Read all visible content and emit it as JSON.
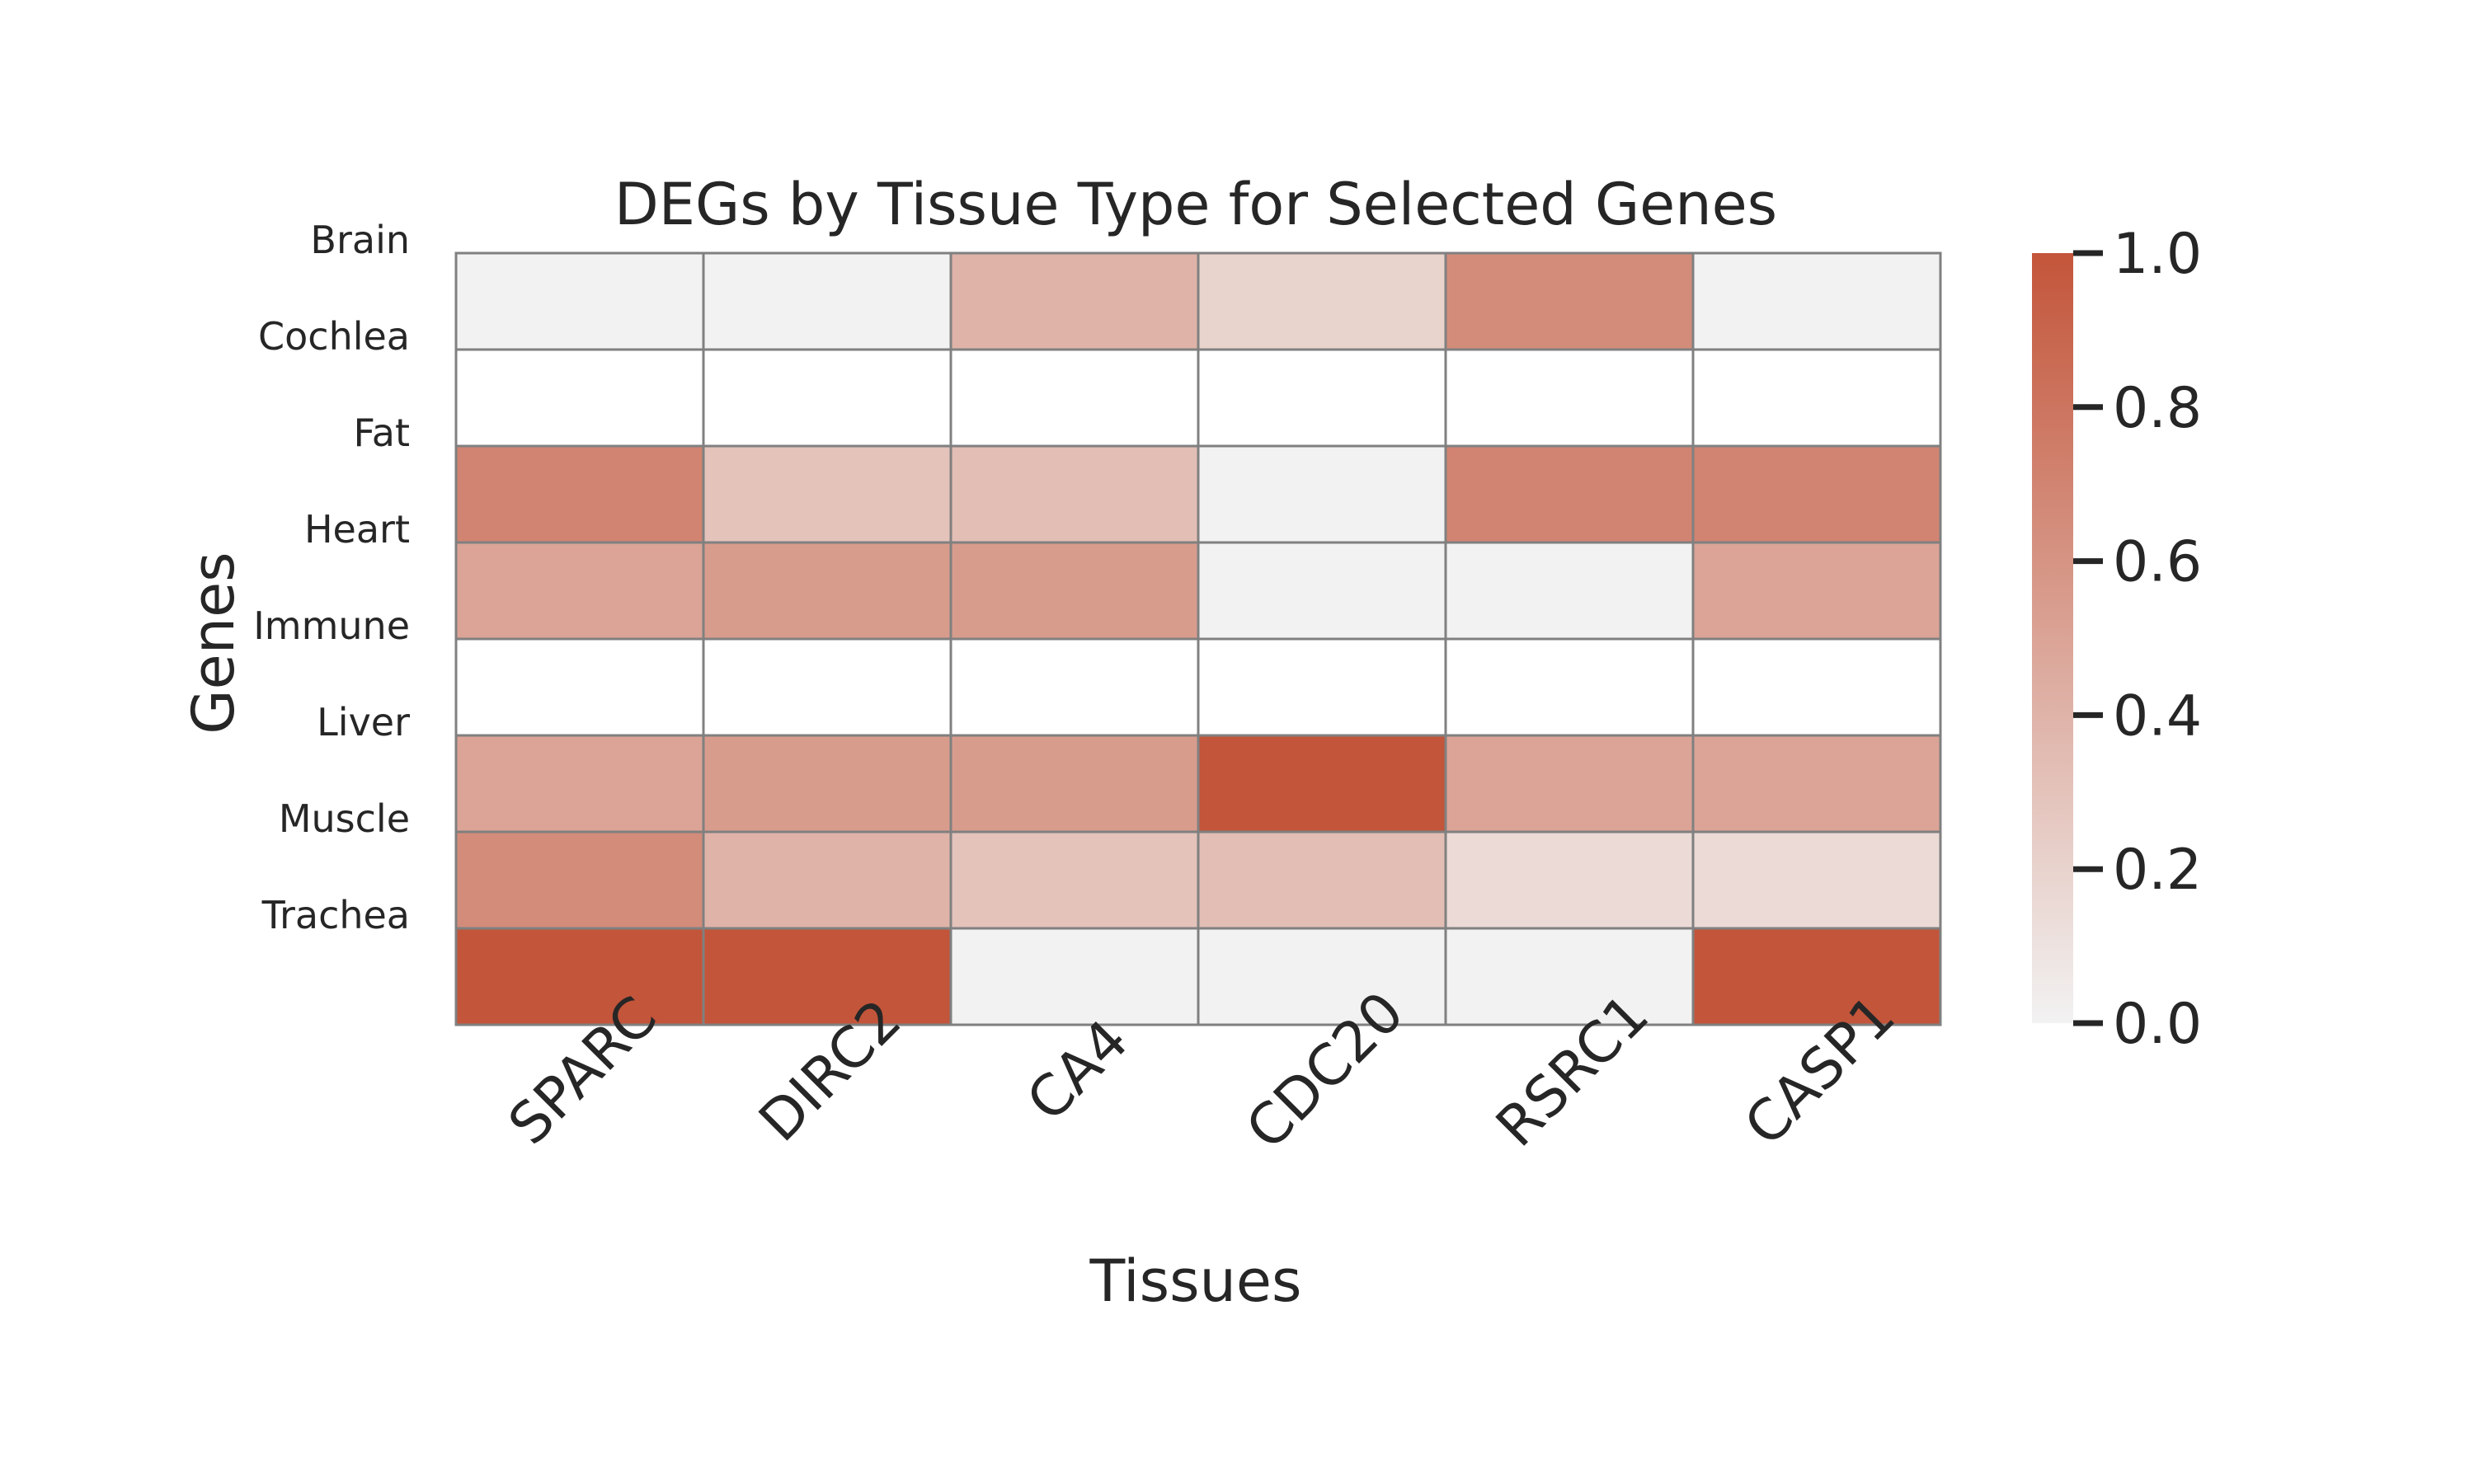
{
  "chart_data": {
    "type": "heatmap",
    "title": "DEGs by Tissue Type for Selected Genes",
    "xlabel": "Tissues",
    "ylabel": "Genes",
    "columns": [
      "SPARC",
      "DIRC2",
      "CA4",
      "CDC20",
      "RSRC1",
      "CASP1"
    ],
    "rows": [
      "Brain",
      "Cochlea",
      "Fat",
      "Heart",
      "Immune",
      "Liver",
      "Muscle",
      "Trachea"
    ],
    "values": [
      [
        0.0,
        0.0,
        0.4,
        0.2,
        0.65,
        0.0
      ],
      [
        null,
        null,
        null,
        null,
        null,
        null
      ],
      [
        0.7,
        0.3,
        0.33,
        0.0,
        0.7,
        0.7
      ],
      [
        0.5,
        0.55,
        0.55,
        0.0,
        0.0,
        0.5
      ],
      [
        null,
        null,
        null,
        null,
        null,
        null
      ],
      [
        0.5,
        0.55,
        0.55,
        1.0,
        0.5,
        0.5
      ],
      [
        0.65,
        0.4,
        0.3,
        0.33,
        0.15,
        0.15
      ],
      [
        1.0,
        1.0,
        0.0,
        0.0,
        0.0,
        1.0
      ]
    ],
    "colorbar": {
      "min": 0.0,
      "max": 1.0,
      "ticks": [
        "0.0",
        "0.2",
        "0.4",
        "0.6",
        "0.8",
        "1.0"
      ],
      "color_low": "#f2f2f2",
      "color_high": "#c3553a"
    },
    "missing_color": "#ffffff",
    "gridline_color": "#808080"
  }
}
